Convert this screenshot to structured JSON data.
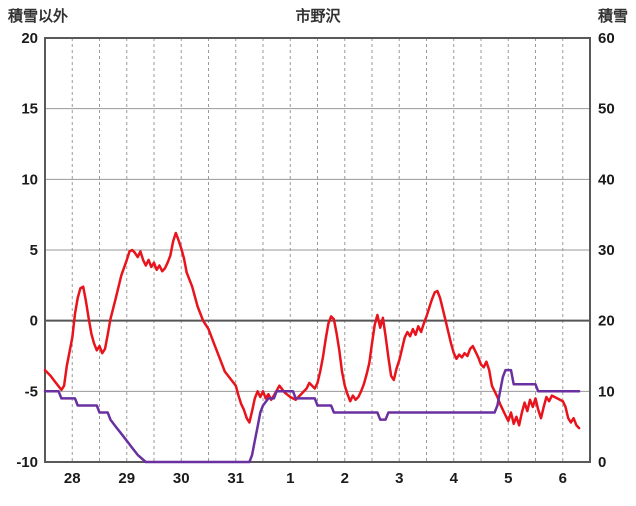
{
  "header": {
    "left_axis_label": "積雪以外",
    "title": "市野沢",
    "right_axis_label": "積雪"
  },
  "chart_data": {
    "type": "line",
    "title": "市野沢",
    "left_axis": {
      "label": "積雪以外",
      "min": -10,
      "max": 20,
      "ticks": [
        20,
        15,
        10,
        5,
        0,
        -5,
        -10
      ]
    },
    "right_axis": {
      "label": "積雪",
      "min": 0,
      "max": 60,
      "ticks": [
        60,
        50,
        40,
        30,
        20,
        10,
        0
      ]
    },
    "x_axis": {
      "min": 0,
      "max": 10,
      "day_labels": [
        "28",
        "29",
        "30",
        "31",
        "1",
        "2",
        "3",
        "4",
        "5",
        "6"
      ],
      "gridline_step": 0.5
    },
    "grid": {
      "color": "#9a9a9a",
      "zero_line_color": "#555555",
      "border_color": "#595959",
      "tick_color": "#1a1a1a"
    },
    "series": [
      {
        "data_name": "red-line",
        "axis": "left",
        "color": "#e8131c",
        "points": [
          [
            0.0,
            -3.5
          ],
          [
            0.1,
            -3.9
          ],
          [
            0.2,
            -4.4
          ],
          [
            0.3,
            -4.9
          ],
          [
            0.35,
            -4.6
          ],
          [
            0.4,
            -3.2
          ],
          [
            0.5,
            -1.2
          ],
          [
            0.55,
            0.5
          ],
          [
            0.6,
            1.6
          ],
          [
            0.65,
            2.3
          ],
          [
            0.7,
            2.4
          ],
          [
            0.75,
            1.4
          ],
          [
            0.8,
            0.2
          ],
          [
            0.85,
            -0.9
          ],
          [
            0.9,
            -1.6
          ],
          [
            0.95,
            -2.1
          ],
          [
            1.0,
            -1.8
          ],
          [
            1.05,
            -2.3
          ],
          [
            1.1,
            -2.0
          ],
          [
            1.15,
            -1.0
          ],
          [
            1.2,
            0.1
          ],
          [
            1.3,
            1.6
          ],
          [
            1.4,
            3.2
          ],
          [
            1.5,
            4.3
          ],
          [
            1.55,
            4.9
          ],
          [
            1.6,
            5.0
          ],
          [
            1.65,
            4.8
          ],
          [
            1.7,
            4.5
          ],
          [
            1.75,
            4.9
          ],
          [
            1.8,
            4.3
          ],
          [
            1.85,
            3.9
          ],
          [
            1.9,
            4.3
          ],
          [
            1.95,
            3.8
          ],
          [
            2.0,
            4.1
          ],
          [
            2.05,
            3.6
          ],
          [
            2.1,
            3.9
          ],
          [
            2.15,
            3.5
          ],
          [
            2.2,
            3.7
          ],
          [
            2.25,
            4.1
          ],
          [
            2.3,
            4.6
          ],
          [
            2.35,
            5.6
          ],
          [
            2.4,
            6.2
          ],
          [
            2.45,
            5.7
          ],
          [
            2.5,
            5.1
          ],
          [
            2.55,
            4.4
          ],
          [
            2.6,
            3.4
          ],
          [
            2.7,
            2.4
          ],
          [
            2.8,
            1.0
          ],
          [
            2.9,
            0.0
          ],
          [
            3.0,
            -0.6
          ],
          [
            3.1,
            -1.6
          ],
          [
            3.2,
            -2.6
          ],
          [
            3.3,
            -3.6
          ],
          [
            3.4,
            -4.1
          ],
          [
            3.5,
            -4.6
          ],
          [
            3.55,
            -5.3
          ],
          [
            3.6,
            -5.9
          ],
          [
            3.65,
            -6.3
          ],
          [
            3.7,
            -6.9
          ],
          [
            3.75,
            -7.2
          ],
          [
            3.8,
            -6.4
          ],
          [
            3.85,
            -5.5
          ],
          [
            3.9,
            -5.0
          ],
          [
            3.95,
            -5.4
          ],
          [
            4.0,
            -5.0
          ],
          [
            4.05,
            -5.5
          ],
          [
            4.1,
            -5.2
          ],
          [
            4.15,
            -5.6
          ],
          [
            4.2,
            -5.3
          ],
          [
            4.3,
            -4.6
          ],
          [
            4.4,
            -5.1
          ],
          [
            4.5,
            -5.4
          ],
          [
            4.6,
            -5.6
          ],
          [
            4.7,
            -5.2
          ],
          [
            4.8,
            -4.8
          ],
          [
            4.85,
            -4.4
          ],
          [
            4.9,
            -4.6
          ],
          [
            4.95,
            -4.8
          ],
          [
            5.0,
            -4.4
          ],
          [
            5.05,
            -3.6
          ],
          [
            5.1,
            -2.6
          ],
          [
            5.15,
            -1.3
          ],
          [
            5.2,
            -0.2
          ],
          [
            5.25,
            0.3
          ],
          [
            5.3,
            0.1
          ],
          [
            5.35,
            -0.9
          ],
          [
            5.4,
            -2.1
          ],
          [
            5.45,
            -3.6
          ],
          [
            5.5,
            -4.6
          ],
          [
            5.55,
            -5.2
          ],
          [
            5.6,
            -5.7
          ],
          [
            5.65,
            -5.3
          ],
          [
            5.7,
            -5.6
          ],
          [
            5.75,
            -5.4
          ],
          [
            5.8,
            -5.0
          ],
          [
            5.85,
            -4.5
          ],
          [
            5.9,
            -3.8
          ],
          [
            5.95,
            -3.0
          ],
          [
            6.0,
            -1.6
          ],
          [
            6.05,
            -0.3
          ],
          [
            6.1,
            0.4
          ],
          [
            6.15,
            -0.5
          ],
          [
            6.2,
            0.2
          ],
          [
            6.25,
            -1.1
          ],
          [
            6.3,
            -2.6
          ],
          [
            6.35,
            -3.9
          ],
          [
            6.4,
            -4.2
          ],
          [
            6.45,
            -3.4
          ],
          [
            6.5,
            -2.8
          ],
          [
            6.55,
            -2.0
          ],
          [
            6.6,
            -1.2
          ],
          [
            6.65,
            -0.8
          ],
          [
            6.7,
            -1.1
          ],
          [
            6.75,
            -0.6
          ],
          [
            6.8,
            -1.0
          ],
          [
            6.85,
            -0.4
          ],
          [
            6.9,
            -0.8
          ],
          [
            6.95,
            -0.2
          ],
          [
            7.0,
            0.3
          ],
          [
            7.05,
            0.9
          ],
          [
            7.1,
            1.5
          ],
          [
            7.15,
            2.0
          ],
          [
            7.2,
            2.1
          ],
          [
            7.25,
            1.6
          ],
          [
            7.3,
            0.8
          ],
          [
            7.35,
            0.0
          ],
          [
            7.4,
            -0.8
          ],
          [
            7.45,
            -1.6
          ],
          [
            7.5,
            -2.3
          ],
          [
            7.55,
            -2.7
          ],
          [
            7.6,
            -2.4
          ],
          [
            7.65,
            -2.6
          ],
          [
            7.7,
            -2.3
          ],
          [
            7.75,
            -2.5
          ],
          [
            7.8,
            -2.0
          ],
          [
            7.85,
            -1.8
          ],
          [
            7.9,
            -2.2
          ],
          [
            7.95,
            -2.6
          ],
          [
            8.0,
            -3.1
          ],
          [
            8.05,
            -3.3
          ],
          [
            8.1,
            -2.9
          ],
          [
            8.15,
            -3.5
          ],
          [
            8.2,
            -4.6
          ],
          [
            8.3,
            -5.4
          ],
          [
            8.35,
            -5.9
          ],
          [
            8.4,
            -6.3
          ],
          [
            8.45,
            -6.7
          ],
          [
            8.5,
            -7.1
          ],
          [
            8.55,
            -6.5
          ],
          [
            8.6,
            -7.3
          ],
          [
            8.65,
            -6.8
          ],
          [
            8.7,
            -7.4
          ],
          [
            8.75,
            -6.5
          ],
          [
            8.8,
            -5.8
          ],
          [
            8.85,
            -6.4
          ],
          [
            8.9,
            -5.6
          ],
          [
            8.95,
            -6.1
          ],
          [
            9.0,
            -5.5
          ],
          [
            9.05,
            -6.3
          ],
          [
            9.1,
            -6.9
          ],
          [
            9.15,
            -6.1
          ],
          [
            9.2,
            -5.4
          ],
          [
            9.25,
            -5.7
          ],
          [
            9.3,
            -5.3
          ],
          [
            9.4,
            -5.5
          ],
          [
            9.5,
            -5.7
          ],
          [
            9.55,
            -6.1
          ],
          [
            9.6,
            -6.9
          ],
          [
            9.65,
            -7.2
          ],
          [
            9.7,
            -6.9
          ],
          [
            9.75,
            -7.4
          ],
          [
            9.8,
            -7.6
          ]
        ]
      },
      {
        "data_name": "snow-depth-line",
        "axis": "right",
        "color": "#6a30a0",
        "points": [
          [
            0.0,
            10
          ],
          [
            0.25,
            10
          ],
          [
            0.3,
            9
          ],
          [
            0.55,
            9
          ],
          [
            0.6,
            8
          ],
          [
            0.95,
            8
          ],
          [
            1.0,
            7
          ],
          [
            1.15,
            7
          ],
          [
            1.2,
            6
          ],
          [
            1.3,
            5
          ],
          [
            1.4,
            4
          ],
          [
            1.5,
            3
          ],
          [
            1.6,
            2
          ],
          [
            1.7,
            1
          ],
          [
            1.85,
            0
          ],
          [
            3.75,
            0
          ],
          [
            3.8,
            1
          ],
          [
            3.85,
            3
          ],
          [
            3.9,
            5
          ],
          [
            3.95,
            7
          ],
          [
            4.0,
            8
          ],
          [
            4.1,
            9
          ],
          [
            4.2,
            9
          ],
          [
            4.25,
            10
          ],
          [
            4.55,
            10
          ],
          [
            4.6,
            9
          ],
          [
            4.95,
            9
          ],
          [
            5.0,
            8
          ],
          [
            5.25,
            8
          ],
          [
            5.3,
            7
          ],
          [
            6.1,
            7
          ],
          [
            6.15,
            6
          ],
          [
            6.25,
            6
          ],
          [
            6.3,
            7
          ],
          [
            8.25,
            7
          ],
          [
            8.3,
            8
          ],
          [
            8.35,
            10
          ],
          [
            8.4,
            12
          ],
          [
            8.45,
            13
          ],
          [
            8.55,
            13
          ],
          [
            8.6,
            11
          ],
          [
            9.0,
            11
          ],
          [
            9.05,
            10
          ],
          [
            9.8,
            10
          ]
        ]
      }
    ]
  }
}
